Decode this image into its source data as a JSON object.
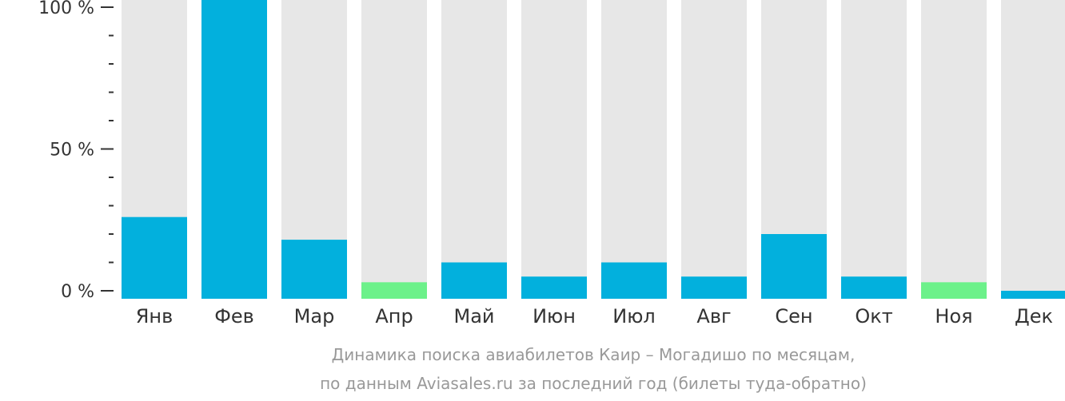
{
  "chart_data": {
    "type": "bar",
    "categories": [
      "Янв",
      "Фев",
      "Мар",
      "Апр",
      "Май",
      "Июн",
      "Июл",
      "Авг",
      "Сен",
      "Окт",
      "Ноя",
      "Дек"
    ],
    "values": [
      26,
      105,
      18,
      3,
      10,
      5,
      10,
      5,
      20,
      5,
      3,
      0
    ],
    "ylim": [
      0,
      105
    ],
    "y_ticks": [
      {
        "value": 0,
        "label": "0 %"
      },
      {
        "value": 50,
        "label": "50 %"
      },
      {
        "value": 100,
        "label": "100 %"
      }
    ],
    "minor_tick_step": 10,
    "grid": false,
    "legend": "none",
    "colors": {
      "bar": "#02b0dd",
      "bar_low": "#6cf18a",
      "track": "#e7e7e7",
      "axis": "#333333",
      "caption": "#999999"
    },
    "low_value_months": [
      "Апр",
      "Ноя"
    ]
  },
  "caption": {
    "line1": "Динамика поиска авиабилетов Каир – Могадишо по месяцам,",
    "line2": "по данным Aviasales.ru за последний год (билеты туда-обратно)"
  }
}
